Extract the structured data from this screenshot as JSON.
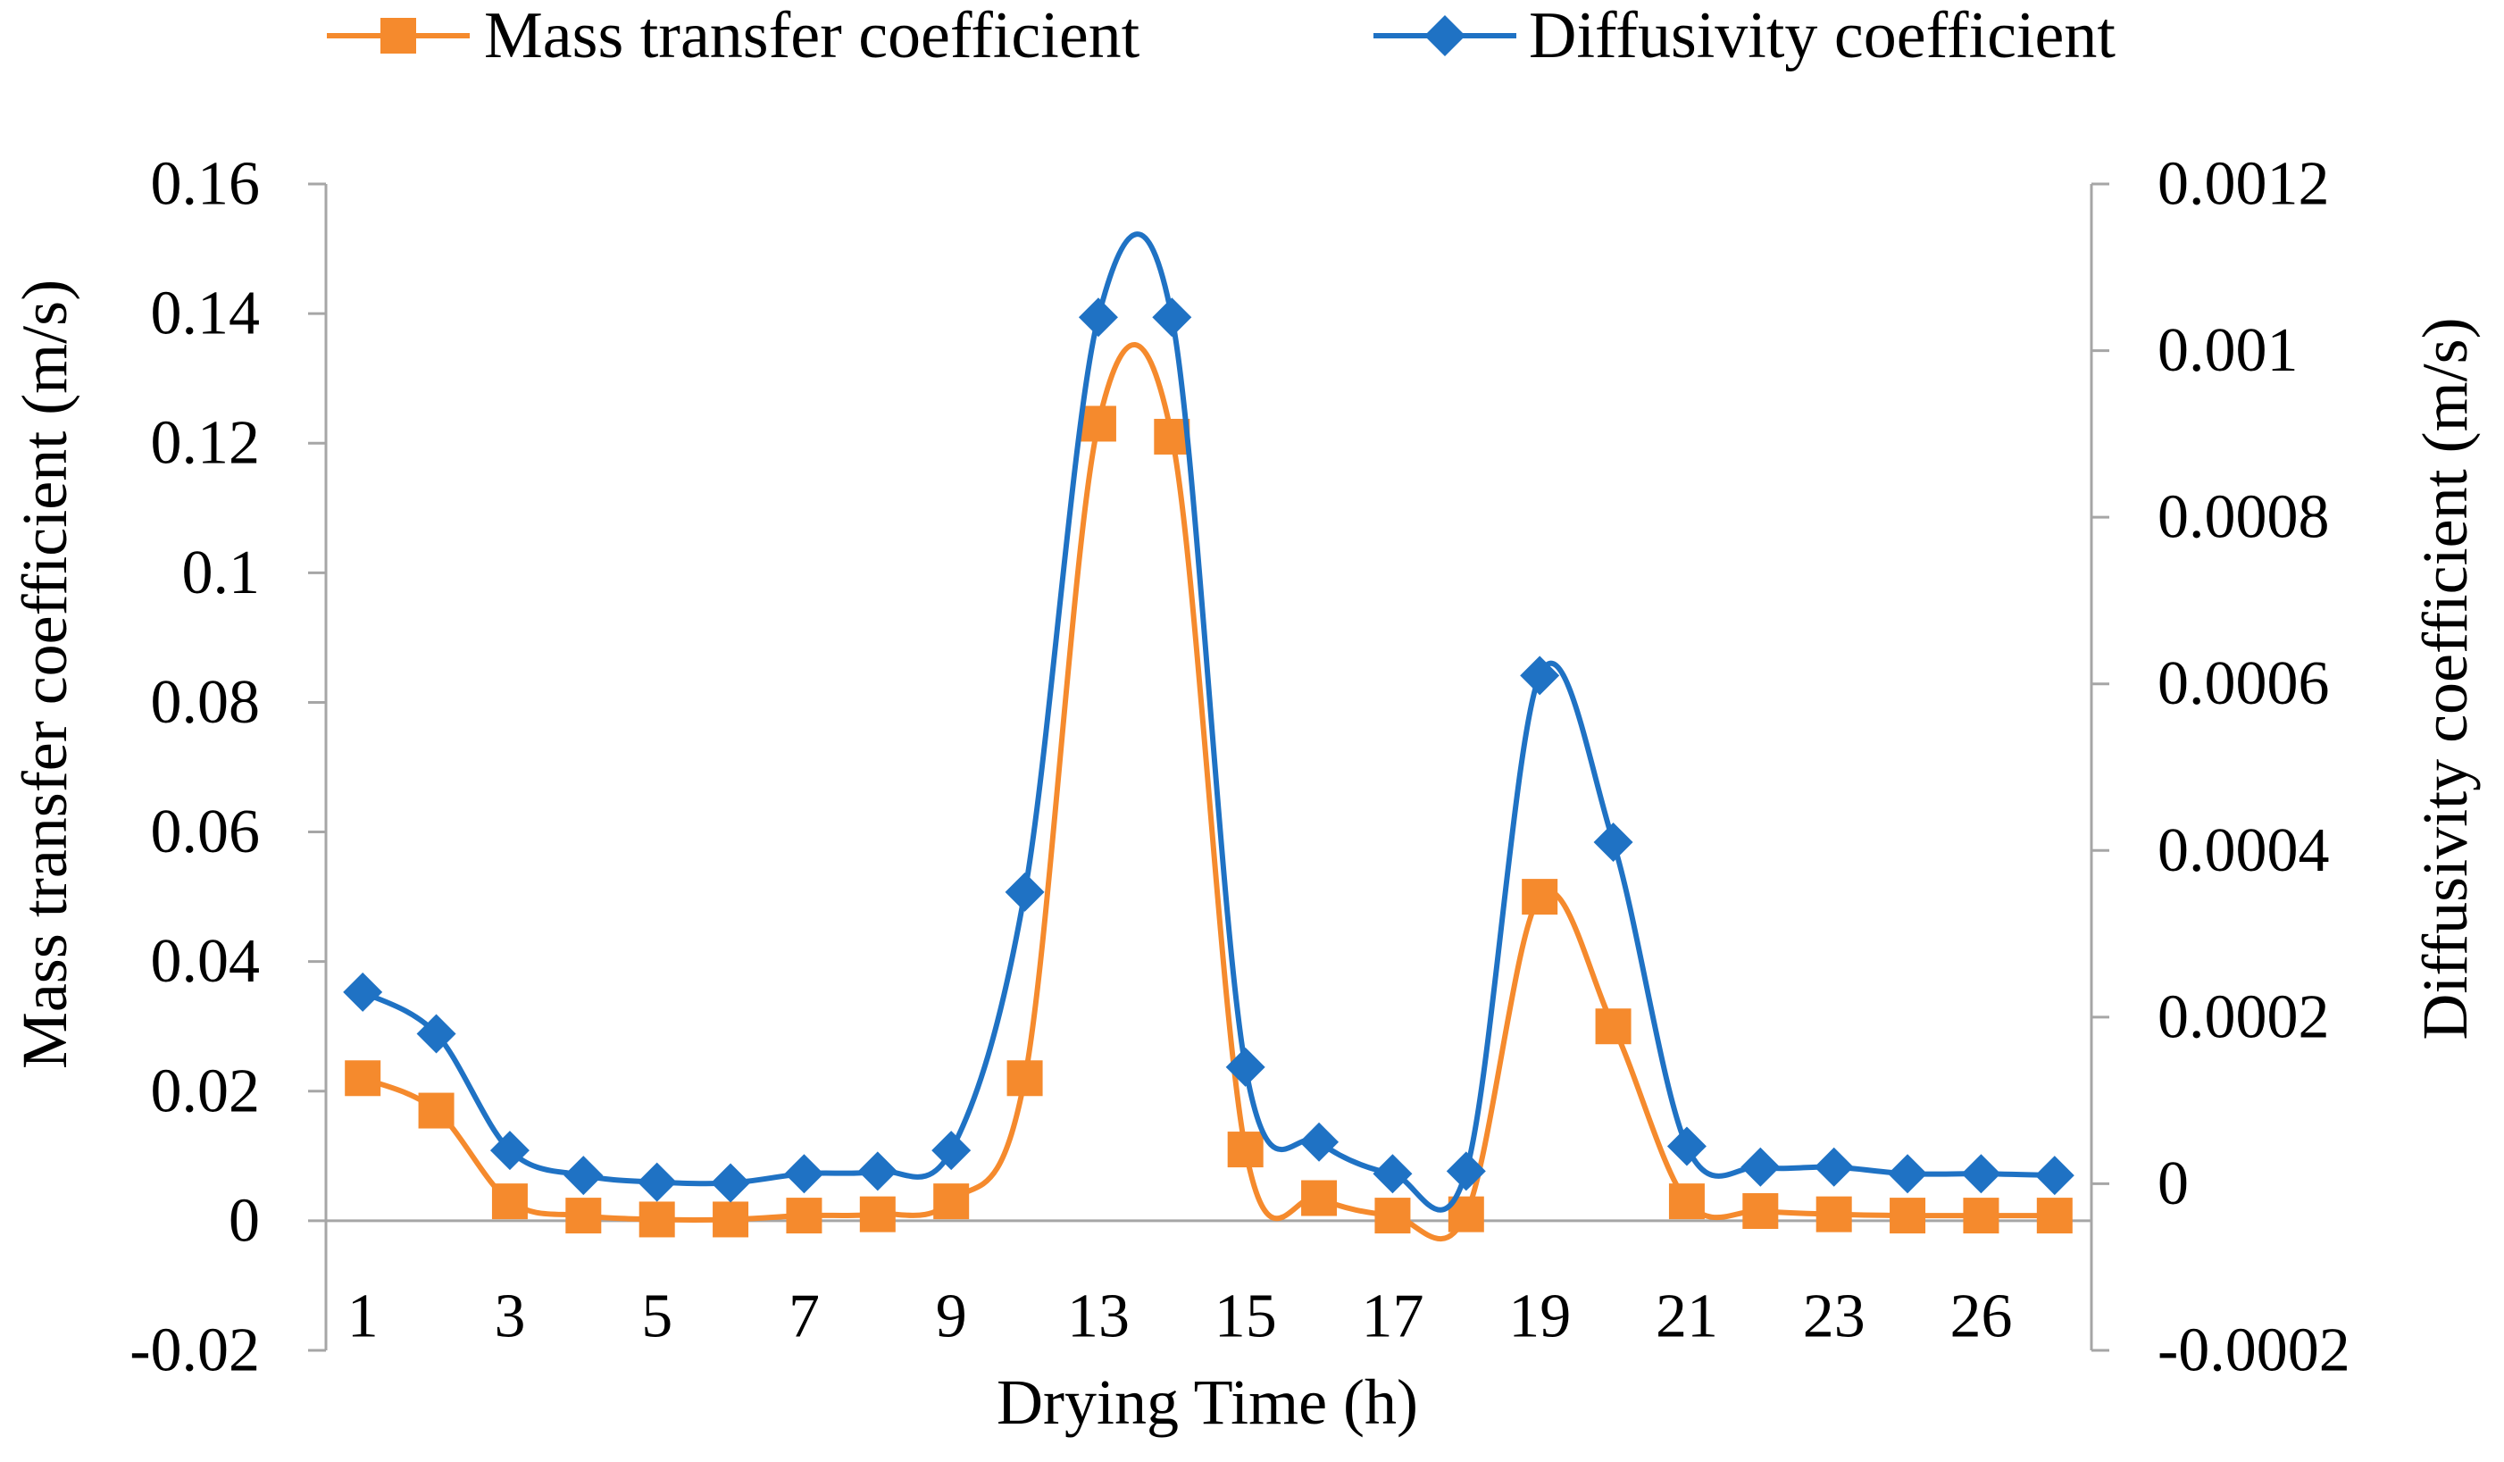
{
  "chart_data": {
    "type": "line",
    "title": "",
    "xlabel": "Drying Time (h)",
    "ylabel": "Mass  transfer coefficient (m/s)",
    "y2label": "Diffusivity coefficient (m/s)",
    "categories": [
      "1",
      "2",
      "3",
      "4",
      "5",
      "6",
      "7",
      "8",
      "9",
      "10",
      "13",
      "14",
      "15",
      "16",
      "17",
      "18",
      "19",
      "20",
      "21",
      "22",
      "23",
      "24",
      "26",
      "27"
    ],
    "shown_tick_labels": [
      "1",
      "3",
      "5",
      "7",
      "9",
      "13",
      "15",
      "17",
      "19",
      "21",
      "23",
      "26"
    ],
    "ylim": [
      -0.02,
      0.16
    ],
    "yticks": [
      "-0.02",
      "0",
      "0.02",
      "0.04",
      "0.06",
      "0.08",
      "0.1",
      "0.12",
      "0.14",
      "0.16"
    ],
    "y2lim": [
      -0.0002,
      0.0012
    ],
    "y2ticks": [
      "-0.0002",
      "0",
      "0.0002",
      "0.0004",
      "0.0006",
      "0.0008",
      "0.001",
      "0.0012"
    ],
    "legend_position": "top",
    "grid": false,
    "series": [
      {
        "name": "Mass transfer coefficient",
        "axis": "left",
        "color": "#F58A2D",
        "marker": "square",
        "values": [
          0.022,
          0.017,
          0.003,
          0.0008,
          0.0002,
          0.0002,
          0.0008,
          0.001,
          0.003,
          0.022,
          0.123,
          0.121,
          0.011,
          0.0035,
          0.0008,
          0.001,
          0.05,
          0.03,
          0.003,
          0.0015,
          0.001,
          0.0008,
          0.0008,
          0.0008
        ]
      },
      {
        "name": "Diffusivity coefficient",
        "axis": "right",
        "color": "#1F72C4",
        "marker": "diamond",
        "values": [
          0.00023,
          0.00018,
          4e-05,
          1e-05,
          2e-06,
          1e-06,
          1.2e-05,
          1.5e-05,
          4e-05,
          0.00035,
          0.00104,
          0.00104,
          0.00014,
          5e-05,
          1.2e-05,
          1.5e-05,
          0.00061,
          0.00041,
          4.5e-05,
          2e-05,
          2e-05,
          1.2e-05,
          1.2e-05,
          1e-05
        ]
      }
    ]
  }
}
